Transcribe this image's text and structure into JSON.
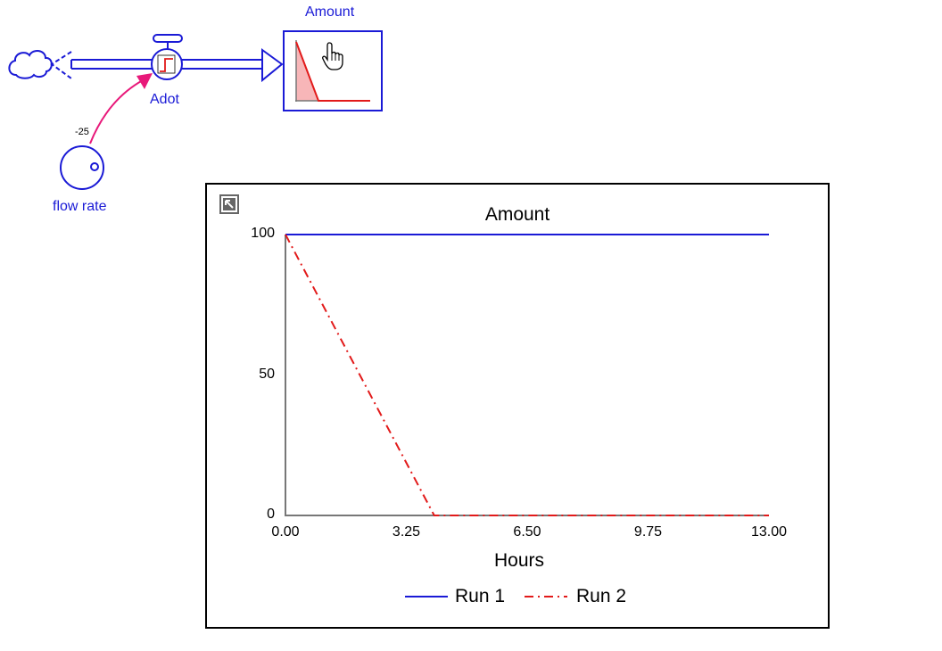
{
  "model": {
    "stock": {
      "name": "Amount"
    },
    "flow": {
      "name": "Adot"
    },
    "converter": {
      "name": "flow rate",
      "value_label": "-25"
    },
    "colors": {
      "model": "#1a1ad6",
      "link": "#e8197a",
      "run2": "#e21a1a",
      "stock_fill": "#f7b6b8"
    },
    "icons": [
      "cloud-icon",
      "valve-icon",
      "flow-arrow-icon",
      "hand-cursor-icon",
      "expand-icon"
    ]
  },
  "graph": {
    "expand_icon": "expand-icon",
    "legend": {
      "run1": "Run 1",
      "run2": "Run 2"
    }
  },
  "chart_data": {
    "type": "line",
    "title": "Amount",
    "xlabel": "Hours",
    "ylabel": "",
    "xlim": [
      0,
      13
    ],
    "ylim": [
      0,
      100
    ],
    "x_ticks": [
      "0.00",
      "3.25",
      "6.50",
      "9.75",
      "13.00"
    ],
    "y_ticks": [
      "100",
      "50",
      "0"
    ],
    "series": [
      {
        "name": "Run 1",
        "color": "#1a1ad6",
        "style": "solid",
        "x": [
          0,
          13
        ],
        "y": [
          100,
          100
        ]
      },
      {
        "name": "Run 2",
        "color": "#e21a1a",
        "style": "dash-dot",
        "x": [
          0,
          4,
          13
        ],
        "y": [
          100,
          0,
          0
        ]
      }
    ],
    "grid": false,
    "legend_position": "bottom"
  }
}
